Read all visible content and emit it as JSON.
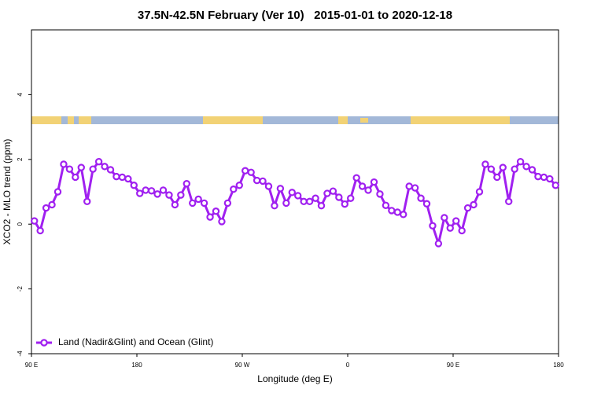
{
  "chart_data": {
    "type": "line",
    "title": "37.5N-42.5N February (Ver 10)   2015-01-01 to 2020-12-18",
    "x_label": "Longitude (deg E)",
    "y_label": "XCO2 - MLO trend (ppm)",
    "xlim": [
      90,
      540
    ],
    "xticks": [
      {
        "value": 90,
        "label": "90 E"
      },
      180,
      {
        "value": 270,
        "label": "90 W"
      },
      {
        "value": 360,
        "label": "0"
      },
      {
        "value": 450,
        "label": "90 E"
      },
      {
        "value": 540,
        "label": "180"
      }
    ],
    "ylim": [
      -4,
      6
    ],
    "yticks": [
      -4,
      -2,
      0,
      2,
      4
    ],
    "grid": false,
    "legend": "bottom-left",
    "x": [
      92.5,
      97.5,
      102.5,
      107.5,
      112.5,
      117.5,
      122.5,
      127.5,
      132.5,
      137.5,
      142.5,
      147.5,
      152.5,
      157.5,
      162.5,
      167.5,
      172.5,
      177.5,
      182.5,
      187.5,
      192.5,
      197.5,
      202.5,
      207.5,
      212.5,
      217.5,
      222.5,
      227.5,
      232.5,
      237.5,
      242.5,
      247.5,
      252.5,
      257.5,
      262.5,
      267.5,
      272.5,
      277.5,
      282.5,
      287.5,
      292.5,
      297.5,
      302.5,
      307.5,
      312.5,
      317.5,
      322.5,
      327.5,
      332.5,
      337.5,
      342.5,
      347.5,
      352.5,
      357.5,
      362.5,
      367.5,
      372.5,
      377.5,
      382.5,
      387.5,
      392.5,
      397.5,
      402.5,
      407.5,
      412.5,
      417.5,
      422.5,
      427.5,
      432.5,
      437.5,
      442.5,
      447.5,
      452.5,
      457.5,
      462.5,
      467.5,
      472.5,
      477.5,
      482.5,
      487.5,
      492.5,
      497.5,
      502.5,
      507.5,
      512.5,
      517.5,
      522.5,
      527.5,
      532.5,
      537.5
    ],
    "series": [
      {
        "name": "Land (Nadir&Glint) and Ocean (Glint)",
        "color": "#a020f0",
        "values": [
          0.1,
          -0.2,
          0.5,
          0.6,
          1.0,
          1.85,
          1.7,
          1.45,
          1.75,
          0.7,
          1.7,
          1.93,
          1.78,
          1.68,
          1.47,
          1.45,
          1.4,
          1.2,
          0.95,
          1.05,
          1.03,
          0.93,
          1.05,
          0.9,
          0.6,
          0.9,
          1.25,
          0.65,
          0.77,
          0.65,
          0.22,
          0.4,
          0.08,
          0.65,
          1.08,
          1.2,
          1.65,
          1.6,
          1.35,
          1.33,
          1.17,
          0.57,
          1.1,
          0.65,
          0.98,
          0.88,
          0.7,
          0.7,
          0.8,
          0.57,
          0.95,
          1.02,
          0.83,
          0.62,
          0.8,
          1.43,
          1.17,
          1.05,
          1.3,
          0.93,
          0.58,
          0.42,
          0.37,
          0.3,
          1.17,
          1.12,
          0.8,
          0.63,
          -0.05,
          -0.6,
          0.2,
          -0.12,
          0.1,
          -0.2,
          0.5,
          0.6,
          1.0,
          1.85,
          1.7,
          1.45,
          1.75,
          0.7,
          1.7,
          1.93,
          1.78,
          1.68,
          1.47,
          1.45,
          1.4,
          1.2
        ]
      }
    ]
  }
}
